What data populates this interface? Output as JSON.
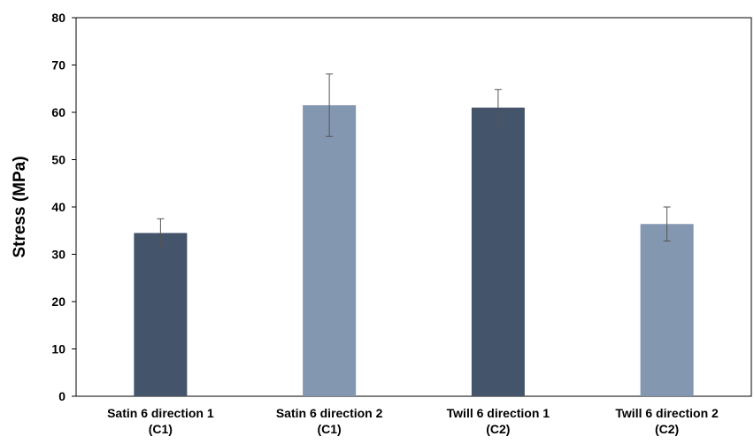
{
  "chart_data": {
    "type": "bar",
    "y_label": "Stress (MPa)",
    "categories": [
      "Satin 6 direction 1\n(C1)",
      "Satin 6 direction 2\n(C1)",
      "Twill 6 direction 1\n(C2)",
      "Twill 6 direction 2\n(C2)"
    ],
    "values": [
      34.5,
      61.5,
      61,
      36.4
    ],
    "errors": [
      3,
      6.6,
      3.8,
      3.6
    ],
    "colors": [
      "#44546a",
      "#8497b0",
      "#44546a",
      "#8497b0"
    ],
    "ylim": [
      0,
      80
    ],
    "yticks": [
      0,
      10,
      20,
      30,
      40,
      50,
      60,
      70,
      80
    ],
    "grid": false
  }
}
